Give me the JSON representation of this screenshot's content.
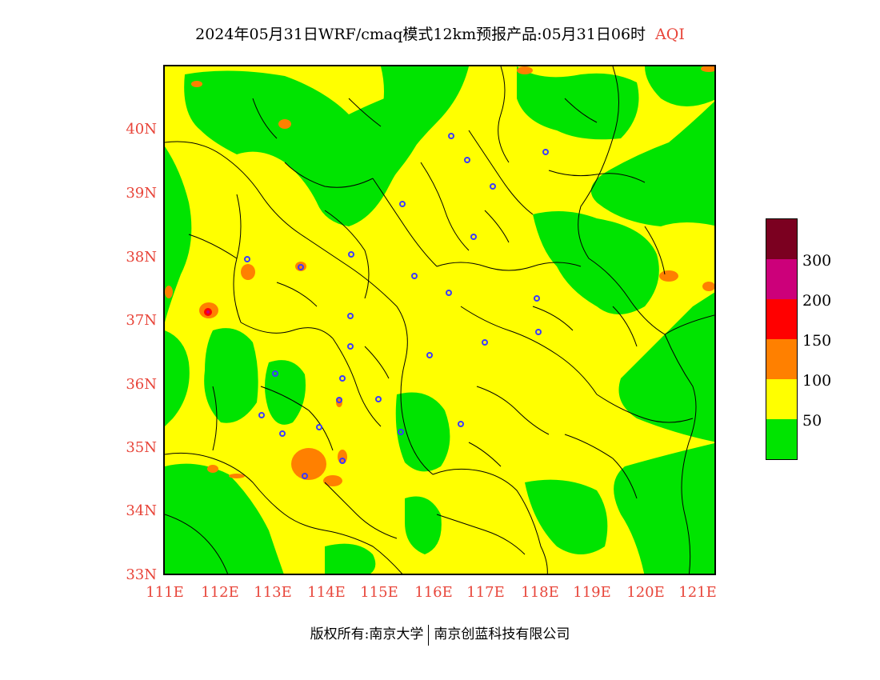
{
  "title": {
    "main": "2024年05月31日WRF/cmaq模式12km预报产品:05月31日06时",
    "product": "AQI"
  },
  "axes": {
    "lat_labels": [
      "40N",
      "39N",
      "38N",
      "37N",
      "36N",
      "35N",
      "34N",
      "33N"
    ],
    "lon_labels": [
      "111E",
      "112E",
      "113E",
      "114E",
      "115E",
      "116E",
      "117E",
      "118E",
      "119E",
      "120E",
      "121E"
    ]
  },
  "legend": {
    "colors": [
      "#7b0020",
      "#cc007a",
      "#ff0000",
      "#ff8000",
      "#ffff00",
      "#00e400"
    ],
    "labels": [
      "300",
      "200",
      "150",
      "100",
      "50"
    ]
  },
  "footer": {
    "left": "版权所有:南京大学",
    "right": "南京创蓝科技有限公司"
  }
}
